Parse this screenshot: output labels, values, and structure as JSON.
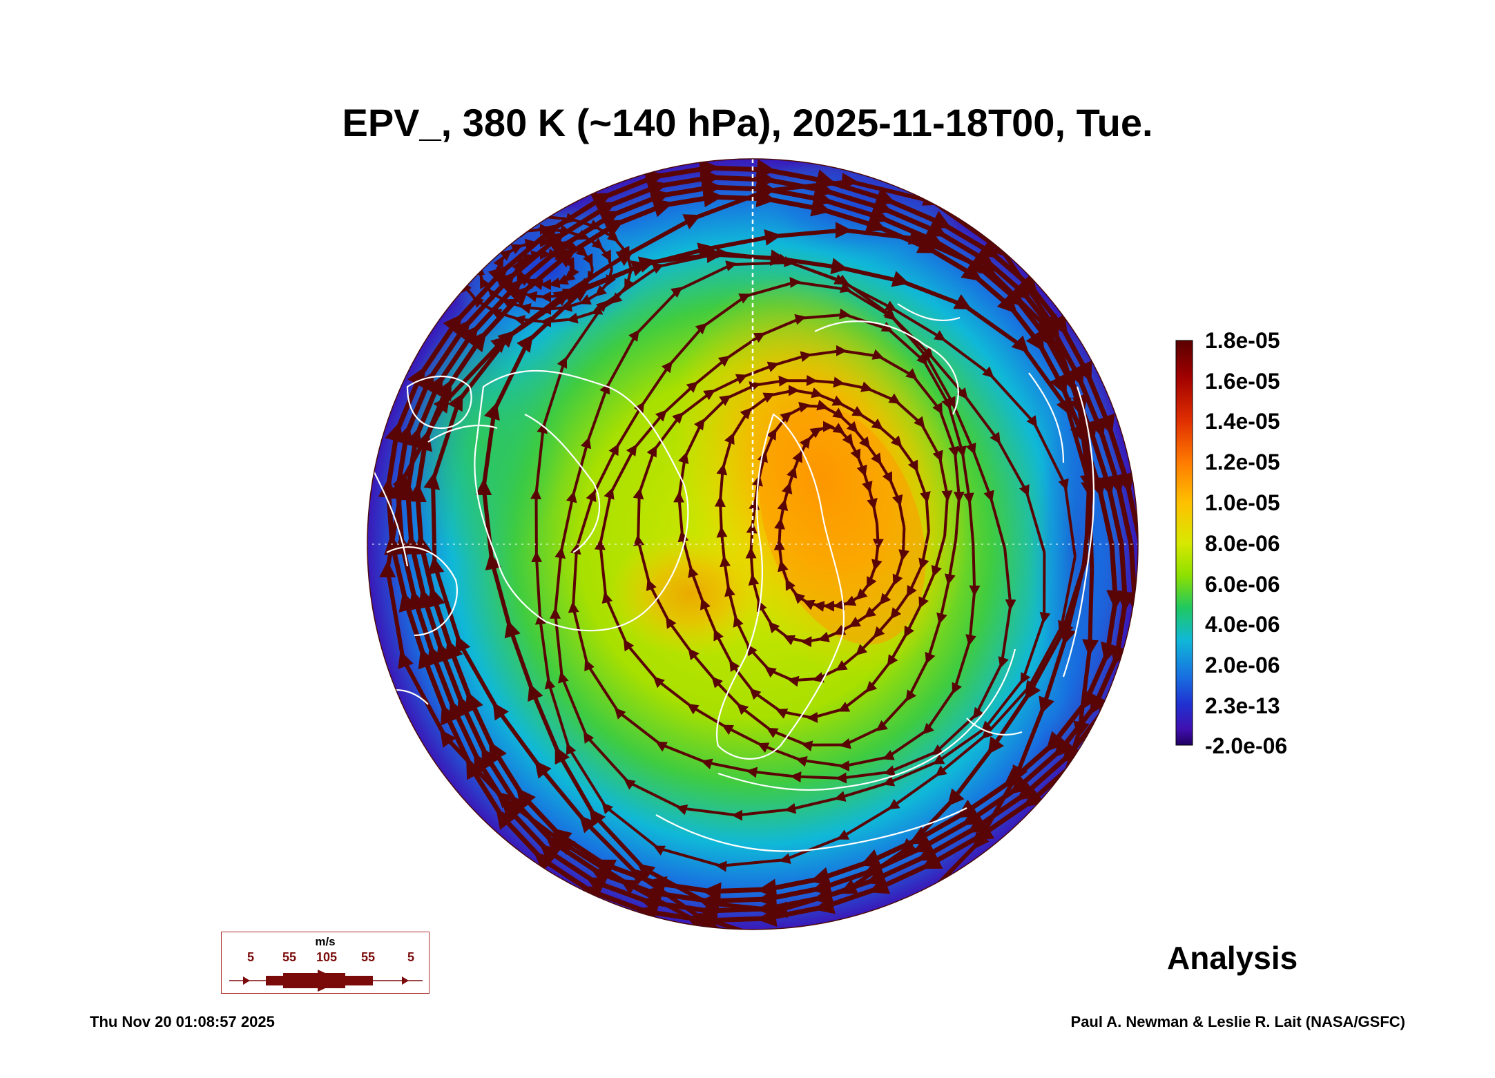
{
  "title": "EPV_, 380 K (~140 hPa), 2025-11-18T00, Tue.",
  "colorbar": {
    "labels": [
      "1.8e-05",
      "1.6e-05",
      "1.4e-05",
      "1.2e-05",
      "1.0e-05",
      "8.0e-06",
      "6.0e-06",
      "4.0e-06",
      "2.0e-06",
      "2.3e-13",
      "-2.0e-06"
    ],
    "colors_top_to_bottom": [
      "#5a0000",
      "#a00000",
      "#e03000",
      "#ff7a00",
      "#ffc000",
      "#d8e800",
      "#8ee000",
      "#20c860",
      "#10b8d8",
      "#1870e0",
      "#2030d0",
      "#4010b0",
      "#200060"
    ]
  },
  "wind_legend": {
    "unit": "m/s",
    "values": [
      "5",
      "55",
      "105",
      "55",
      "5"
    ]
  },
  "analysis_label": "Analysis",
  "footer": {
    "timestamp": "Thu Nov 20 01:08:57 2025",
    "credit": "Paul A. Newman & Leslie R. Lait (NASA/GSFC)"
  },
  "colors": {
    "streamline": "#5a0505",
    "coastline": "#ffffff"
  }
}
